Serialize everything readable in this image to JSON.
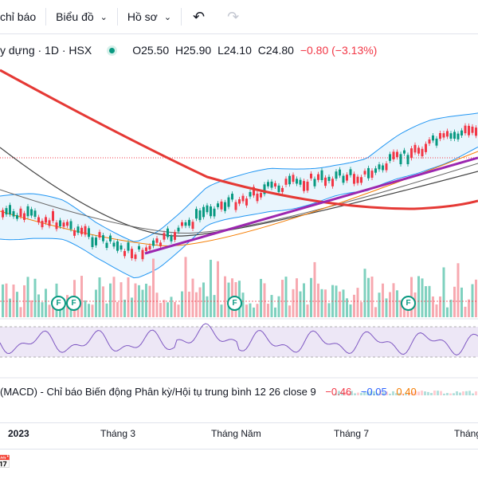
{
  "toolbar": {
    "indicators_label": "chỉ báo",
    "charts_label": "Biểu đồ",
    "profile_label": "Hồ sơ"
  },
  "legend": {
    "symbol_label": "y dựng · 1D · HSX",
    "open": "O25.50",
    "high": "H25.90",
    "low": "L24.10",
    "close": "C24.80",
    "change": "−0.80 (−3.13%)"
  },
  "macd": {
    "label": "(MACD) - Chỉ báo Biến động Phân kỳ/Hội tụ trung bình 12 26 close 9",
    "v1": "−0.46",
    "v2": "−0.05",
    "v3": "0.40"
  },
  "time_axis": [
    "2023",
    "Tháng 3",
    "Tháng Năm",
    "Tháng 7",
    "Tháng"
  ],
  "dividend_marker": "F",
  "colors": {
    "up": "#089981",
    "down": "#f23645",
    "ma_red": "#e53935",
    "trend": "#9c27b0",
    "band": "#2196f3",
    "rsi": "#7e57c2"
  }
}
